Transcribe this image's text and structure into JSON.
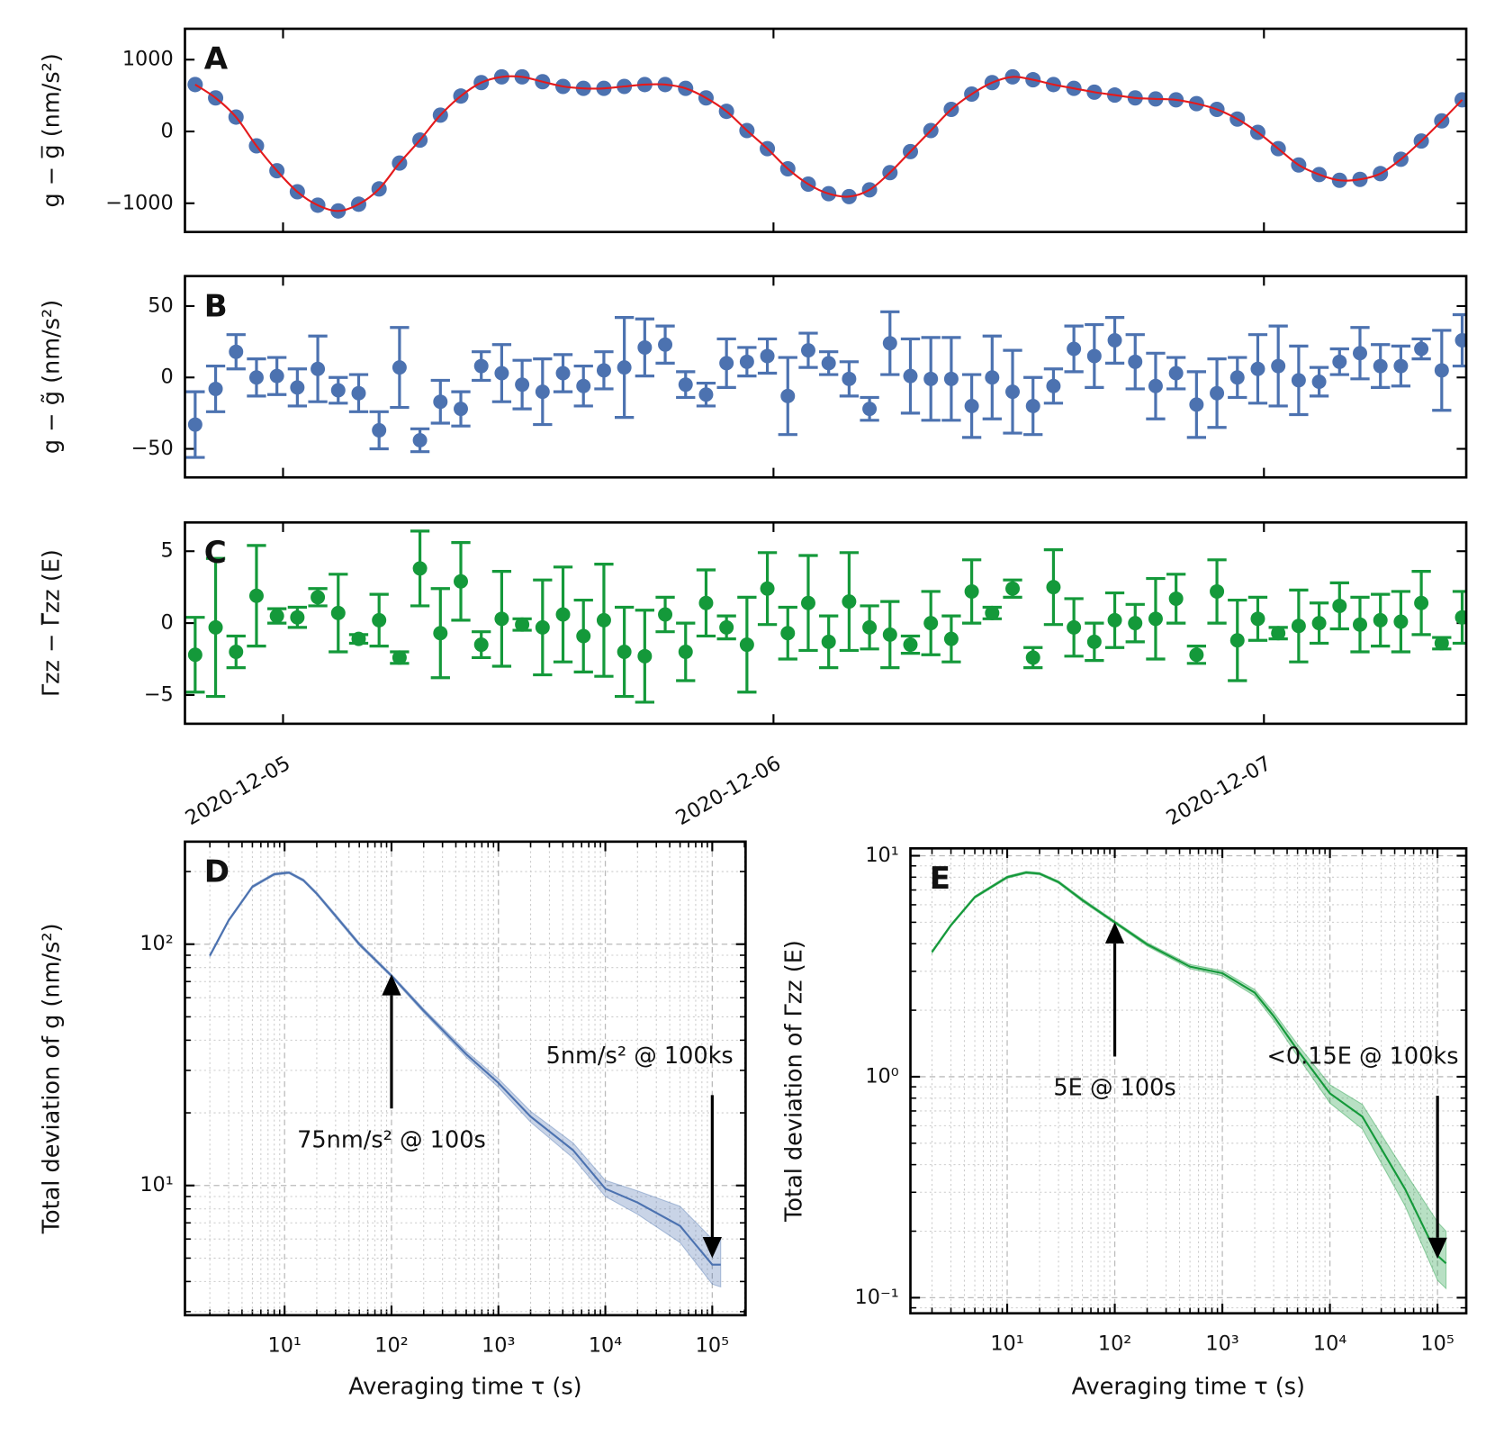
{
  "chart_data": [
    {
      "type": "scatter",
      "label": "A",
      "ylabel": "g − g̅ (nm/s²)",
      "x": [
        -4.3,
        -3.3,
        -2.3,
        -1.3,
        -0.3,
        0.7,
        1.7,
        2.7,
        3.7,
        4.7,
        5.7,
        6.7,
        7.7,
        8.7,
        9.7,
        10.7,
        11.7,
        12.7,
        13.7,
        14.7,
        15.7,
        16.7,
        17.7,
        18.7,
        19.7,
        20.7,
        21.7,
        22.7,
        23.7,
        24.7,
        25.7,
        26.7,
        27.7,
        28.7,
        29.7,
        30.7,
        31.7,
        32.7,
        33.7,
        34.7,
        35.7,
        36.7,
        37.7,
        38.7,
        39.7,
        40.7,
        41.7,
        42.7,
        43.7,
        44.7,
        45.7,
        46.7,
        47.7,
        48.7,
        49.7,
        50.7,
        51.7,
        52.7,
        53.7,
        54.7,
        55.7,
        56.7,
        57.7
      ],
      "series": [
        {
          "color": "#4c72b0",
          "values": [
            653,
            467,
            200,
            -200,
            -547,
            -840,
            -1027,
            -1107,
            -1013,
            -800,
            -440,
            -120,
            227,
            493,
            680,
            760,
            760,
            693,
            627,
            600,
            600,
            627,
            653,
            653,
            600,
            467,
            280,
            13,
            -240,
            -520,
            -733,
            -867,
            -907,
            -813,
            -573,
            -280,
            13,
            307,
            520,
            680,
            760,
            720,
            653,
            600,
            547,
            507,
            467,
            453,
            440,
            387,
            307,
            173,
            -13,
            -240,
            -467,
            -600,
            -680,
            -667,
            -587,
            -387,
            -133,
            147,
            440
          ]
        },
        {
          "color": "#e41a1c",
          "line": true,
          "values": [
            653,
            467,
            200,
            -200,
            -547,
            -840,
            -1027,
            -1107,
            -1013,
            -800,
            -440,
            -120,
            227,
            493,
            680,
            760,
            760,
            693,
            627,
            600,
            600,
            627,
            653,
            653,
            600,
            467,
            280,
            13,
            -240,
            -520,
            -733,
            -867,
            -907,
            -813,
            -573,
            -280,
            13,
            307,
            520,
            680,
            760,
            720,
            653,
            600,
            547,
            507,
            467,
            453,
            440,
            387,
            307,
            173,
            -13,
            -240,
            -467,
            -600,
            -680,
            -667,
            -587,
            -387,
            -133,
            147,
            440
          ]
        }
      ],
      "xlim": [
        -4.8,
        57.9
      ],
      "xticks": [
        0,
        24,
        48
      ],
      "ylim": [
        -1400,
        1430
      ],
      "yticks": [
        1000,
        0,
        {
          "value": -1000,
          "label": "−1000"
        }
      ]
    },
    {
      "type": "errorbar",
      "label": "B",
      "ylabel": "g − g̃ (nm/s²)",
      "color": "#4c72b0",
      "x": [
        -4.3,
        -3.3,
        -2.3,
        -1.3,
        -0.3,
        0.7,
        1.7,
        2.7,
        3.7,
        4.7,
        5.7,
        6.7,
        7.7,
        8.7,
        9.7,
        10.7,
        11.7,
        12.7,
        13.7,
        14.7,
        15.7,
        16.7,
        17.7,
        18.7,
        19.7,
        20.7,
        21.7,
        22.7,
        23.7,
        24.7,
        25.7,
        26.7,
        27.7,
        28.7,
        29.7,
        30.7,
        31.7,
        32.7,
        33.7,
        34.7,
        35.7,
        36.7,
        37.7,
        38.7,
        39.7,
        40.7,
        41.7,
        42.7,
        43.7,
        44.7,
        45.7,
        46.7,
        47.7,
        48.7,
        49.7,
        50.7,
        51.7,
        52.7,
        53.7,
        54.7,
        55.7,
        56.7,
        57.7
      ],
      "values": [
        -33,
        -8,
        18,
        0,
        1,
        -7,
        6,
        -9,
        -11,
        -37,
        7,
        -44,
        -17,
        -22,
        8,
        3,
        -5,
        -10,
        3,
        -6,
        5,
        7,
        21,
        23,
        -5,
        -12,
        10,
        11,
        15,
        -13,
        19,
        10,
        -1,
        -22,
        24,
        1,
        -1,
        -1,
        -20,
        0,
        -10,
        -20,
        -6,
        20,
        15,
        26,
        11,
        -6,
        3,
        -19,
        -11,
        0,
        6,
        8,
        -2,
        -3,
        11,
        17,
        8,
        8,
        20,
        5,
        26
      ],
      "errors": [
        23,
        16,
        12,
        13,
        13,
        13,
        23,
        9,
        13,
        13,
        28,
        8,
        15,
        12,
        10,
        20,
        17,
        23,
        13,
        14,
        13,
        35,
        20,
        13,
        9,
        8,
        17,
        10,
        12,
        27,
        12,
        8,
        12,
        8,
        22,
        26,
        29,
        29,
        22,
        29,
        29,
        20,
        12,
        16,
        22,
        16,
        19,
        23,
        11,
        23,
        24,
        14,
        24,
        28,
        24,
        10,
        9,
        18,
        15,
        14,
        7,
        28,
        18
      ],
      "xlim": [
        -4.8,
        57.9
      ],
      "xticks": [
        0,
        24,
        48
      ],
      "ylim": [
        -70,
        71
      ],
      "yticks": [
        50,
        0,
        {
          "value": -50,
          "label": "−50"
        }
      ]
    },
    {
      "type": "errorbar",
      "label": "C",
      "ylabel": "Γzz − Γ̅zz (E)",
      "color": "#14993a",
      "x": [
        -4.3,
        -3.3,
        -2.3,
        -1.3,
        -0.3,
        0.7,
        1.7,
        2.7,
        3.7,
        4.7,
        5.7,
        6.7,
        7.7,
        8.7,
        9.7,
        10.7,
        11.7,
        12.7,
        13.7,
        14.7,
        15.7,
        16.7,
        17.7,
        18.7,
        19.7,
        20.7,
        21.7,
        22.7,
        23.7,
        24.7,
        25.7,
        26.7,
        27.7,
        28.7,
        29.7,
        30.7,
        31.7,
        32.7,
        33.7,
        34.7,
        35.7,
        36.7,
        37.7,
        38.7,
        39.7,
        40.7,
        41.7,
        42.7,
        43.7,
        44.7,
        45.7,
        46.7,
        47.7,
        48.7,
        49.7,
        50.7,
        51.7,
        52.7,
        53.7,
        54.7,
        55.7,
        56.7,
        57.7
      ],
      "values": [
        -2.2,
        -0.3,
        -2.0,
        1.9,
        0.5,
        0.4,
        1.8,
        0.7,
        -1.1,
        0.2,
        -2.4,
        3.8,
        -0.7,
        2.9,
        -1.5,
        0.3,
        -0.1,
        -0.3,
        0.6,
        -0.9,
        0.2,
        -2.0,
        -2.3,
        0.6,
        -2.0,
        1.4,
        -0.3,
        -1.5,
        2.4,
        -0.7,
        1.4,
        -1.3,
        1.5,
        -0.3,
        -0.8,
        -1.5,
        0,
        -1.1,
        2.2,
        0.7,
        2.4,
        -2.4,
        2.5,
        -0.3,
        -1.3,
        0.2,
        0,
        0.3,
        1.7,
        -2.2,
        2.2,
        -1.2,
        0.3,
        -0.7,
        -0.2,
        0,
        1.2,
        -0.1,
        0.2,
        0.1,
        1.4,
        -1.4,
        0.4
      ],
      "errors": [
        2.6,
        4.8,
        1.1,
        3.5,
        0.5,
        0.7,
        0.6,
        2.7,
        0.3,
        1.8,
        0.4,
        2.6,
        3.1,
        2.7,
        0.9,
        3.3,
        0.4,
        3.3,
        3.3,
        2.5,
        3.9,
        3.1,
        3.2,
        1.2,
        2.0,
        2.3,
        0.8,
        3.3,
        2.5,
        1.8,
        3.3,
        1.8,
        3.4,
        1.5,
        2.3,
        0.6,
        2.2,
        1.6,
        2.2,
        0.4,
        0.6,
        0.7,
        2.6,
        2.0,
        1.3,
        1.9,
        1.3,
        2.8,
        1.7,
        0.6,
        2.2,
        2.8,
        1.5,
        0.4,
        2.5,
        1.4,
        1.6,
        1.9,
        1.8,
        2.1,
        2.2,
        0.4,
        1.8
      ],
      "xlim": [
        -4.8,
        57.9
      ],
      "xticks": [
        {
          "value": 0,
          "label": "2020-12-05"
        },
        {
          "value": 24,
          "label": "2020-12-06"
        },
        {
          "value": 48,
          "label": "2020-12-07"
        }
      ],
      "ylim": [
        -7,
        7
      ],
      "yticks": [
        5,
        0,
        {
          "value": -5,
          "label": "−5"
        }
      ]
    },
    {
      "type": "line",
      "label": "D",
      "xlabel": "Averaging time τ (s)",
      "ylabel": "Total deviation of g (nm/s²)",
      "color": "#4c72b0",
      "xlog": true,
      "ylog": true,
      "grid": true,
      "x": [
        2,
        3,
        5,
        8,
        11,
        15,
        20,
        30,
        50,
        100,
        200,
        500,
        1000,
        2000,
        5000,
        10000,
        20000,
        50000,
        100000,
        120000
      ],
      "values": [
        89.6,
        125.6,
        173,
        195,
        198,
        184,
        162,
        131,
        100,
        74,
        53,
        35,
        26.6,
        19.3,
        14,
        9.7,
        8.5,
        6.8,
        4.7,
        4.7
      ],
      "lower": [
        88.5,
        124,
        171,
        193,
        196,
        182,
        160,
        129,
        98.5,
        73,
        52,
        34,
        25.5,
        18.3,
        13,
        9.0,
        7.6,
        5.8,
        3.9,
        3.8
      ],
      "upper": [
        90.7,
        127,
        175,
        197,
        200,
        186,
        164,
        133,
        101.5,
        75,
        54,
        36,
        27.7,
        20.3,
        15,
        10.5,
        9.5,
        8.2,
        6.0,
        6.1
      ],
      "xlim": [
        1.17,
        205000
      ],
      "xticks": [
        {
          "value": 10,
          "label": "10¹"
        },
        {
          "value": 100,
          "label": "10²"
        },
        {
          "value": 1000,
          "label": "10³"
        },
        {
          "value": 10000,
          "label": "10⁴"
        },
        {
          "value": 100000,
          "label": "10⁵"
        }
      ],
      "ylim": [
        2.9,
        266
      ],
      "yticks": [
        {
          "value": 10,
          "label": "10¹"
        },
        {
          "value": 100,
          "label": "10²"
        }
      ],
      "annotations": [
        {
          "text": "75nm/s² @ 100s",
          "x": 100,
          "y": 75,
          "direction": "up"
        },
        {
          "text": "5nm/s² @ 100ks",
          "x": 100000,
          "y": 5,
          "direction": "down"
        }
      ]
    },
    {
      "type": "line",
      "label": "E",
      "xlabel": "Averaging time τ (s)",
      "ylabel": "Total deviation of Γzz (E)",
      "color": "#14993a",
      "xlog": true,
      "ylog": true,
      "grid": true,
      "x": [
        2,
        3,
        5,
        10,
        15,
        20,
        30,
        50,
        100,
        200,
        500,
        1000,
        2000,
        3000,
        5000,
        10000,
        20000,
        50000,
        100000,
        120000
      ],
      "values": [
        3.67,
        4.85,
        6.5,
        8.0,
        8.4,
        8.3,
        7.6,
        6.3,
        5.0,
        3.97,
        3.15,
        2.94,
        2.4,
        1.88,
        1.32,
        0.84,
        0.66,
        0.31,
        0.155,
        0.143
      ],
      "lower": [
        3.62,
        4.79,
        6.42,
        7.9,
        8.3,
        8.2,
        7.5,
        6.2,
        4.93,
        3.9,
        3.08,
        2.86,
        2.32,
        1.8,
        1.24,
        0.76,
        0.58,
        0.26,
        0.12,
        0.11
      ],
      "upper": [
        3.72,
        4.91,
        6.58,
        8.1,
        8.5,
        8.4,
        7.7,
        6.4,
        5.07,
        4.04,
        3.22,
        3.02,
        2.48,
        1.96,
        1.4,
        0.92,
        0.75,
        0.37,
        0.22,
        0.2
      ],
      "xlim": [
        1.26,
        185000
      ],
      "xticks": [
        {
          "value": 10,
          "label": "10¹"
        },
        {
          "value": 100,
          "label": "10²"
        },
        {
          "value": 1000,
          "label": "10³"
        },
        {
          "value": 10000,
          "label": "10⁴"
        },
        {
          "value": 100000,
          "label": "10⁵"
        }
      ],
      "ylim": [
        0.085,
        10.8
      ],
      "yticks": [
        {
          "value": 0.1,
          "label": "10⁻¹"
        },
        {
          "value": 1,
          "label": "10⁰"
        },
        {
          "value": 10,
          "label": "10¹"
        }
      ],
      "annotations": [
        {
          "text": "5E @ 100s",
          "x": 100,
          "y": 5,
          "direction": "up"
        },
        {
          "text": "<0.15E @ 100ks",
          "x": 100000,
          "y": 0.15,
          "direction": "down"
        }
      ]
    }
  ]
}
